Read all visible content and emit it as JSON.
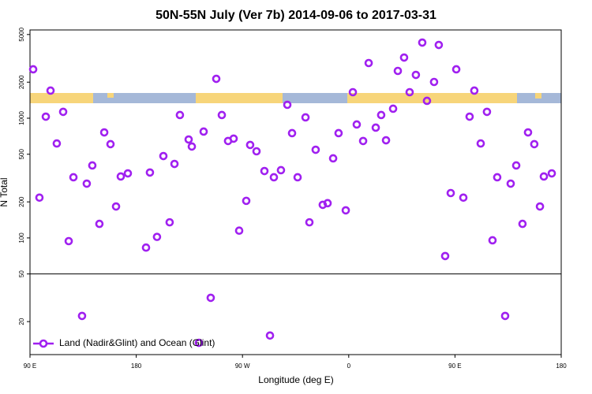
{
  "chart_data": {
    "type": "scatter",
    "title": "50N-55N July (Ver 7b)   2014-09-06 to 2017-03-31",
    "x_label": "Longitude (deg E)",
    "y_label": "N Total",
    "log_y": true,
    "legend": "bottom-left",
    "hline": 50,
    "xlim": [
      90,
      540
    ],
    "xticks": [
      {
        "value": 90,
        "label": "90 E"
      },
      {
        "value": 180,
        "label": "180"
      },
      {
        "value": 270,
        "label": "90 W"
      },
      {
        "value": 360,
        "label": "0"
      },
      {
        "value": 450,
        "label": "90 E"
      },
      {
        "value": 540,
        "label": "180"
      }
    ],
    "ylim": [
      10.6,
      5460
    ],
    "yticks": [
      5000,
      2000,
      1000,
      500,
      200,
      100,
      50,
      20
    ],
    "series": [
      {
        "name": "Land (Nadir&Glint) and Ocean (Glint)",
        "color": "#a020f0",
        "x": [
          92.7,
          98,
          103.4,
          107.4,
          112.7,
          118.1,
          122.8,
          126.8,
          134.1,
          138.1,
          142.8,
          148.8,
          152.9,
          158.2,
          162.9,
          166.9,
          172.9,
          188.3,
          191.6,
          197.6,
          203,
          208.3,
          212.4,
          217,
          224.4,
          227.1,
          233.1,
          237.1,
          243.1,
          247.8,
          252.5,
          257.8,
          262.5,
          267.2,
          273.2,
          276.5,
          281.9,
          288.6,
          293.3,
          296.6,
          302.6,
          308,
          312,
          316.7,
          323.4,
          326.7,
          332,
          338,
          342.1,
          346.8,
          351.4,
          357.5,
          363.5,
          366.8,
          372.2,
          376.9,
          382.9,
          387.5,
          391.6,
          397.6,
          401.6,
          406.9,
          411.6,
          416.9,
          422.3,
          426.3,
          432.3,
          436.3,
          441.7,
          446.4,
          451.1,
          457.1,
          462.4,
          466.4,
          471.8,
          477.1,
          481.8,
          485.8,
          492.5,
          497.2,
          501.9,
          507.2,
          511.9,
          517.2,
          522,
          525.3,
          532
        ],
        "values": [
          2560,
          217,
          1030,
          1700,
          615,
          1130,
          94,
          321,
          22.3,
          284,
          403,
          131,
          761,
          607,
          183,
          326,
          346,
          83,
          352,
          102,
          483,
          135,
          415,
          1063,
          664,
          580,
          13.3,
          773,
          31.6,
          2133,
          1063,
          645,
          675,
          115,
          204,
          598,
          529,
          362,
          15.3,
          321,
          368,
          1294,
          750,
          321,
          1016,
          135,
          545,
          189,
          195,
          462,
          750,
          170,
          1649,
          886,
          645,
          2889,
          834,
          1063,
          654,
          1200,
          2483,
          3211,
          1649,
          2300,
          4283,
          1396,
          2008,
          4093,
          70.6,
          237,
          2560,
          217,
          1030,
          1700,
          615,
          1130,
          95.5,
          321,
          22.3,
          284,
          403,
          131,
          761,
          607,
          183,
          326,
          346
        ]
      }
    ]
  }
}
